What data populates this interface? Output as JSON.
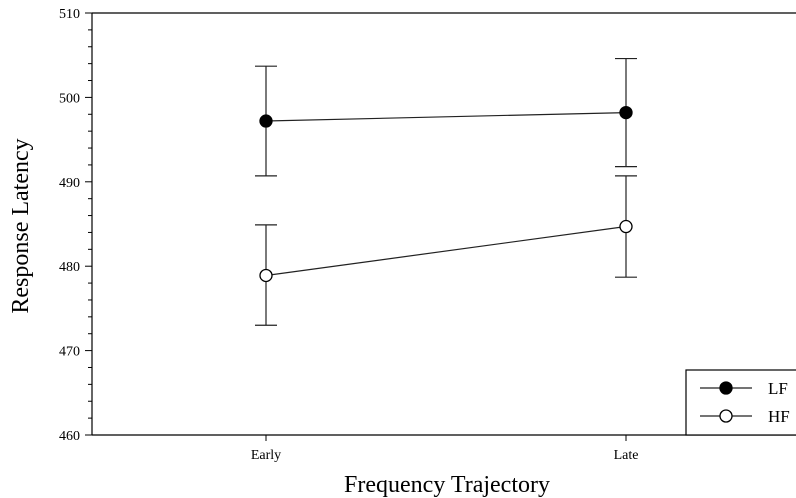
{
  "chart_data": {
    "type": "line",
    "title": "",
    "xlabel": "Frequency Trajectory",
    "ylabel": "Response Latency",
    "categories": [
      "Early",
      "Late"
    ],
    "ylim": [
      460,
      510
    ],
    "yticks": [
      460,
      470,
      480,
      490,
      500,
      510
    ],
    "grid": false,
    "legend_position": "bottom-right",
    "series": [
      {
        "name": "LF",
        "marker": "filled-circle",
        "color": "#000000",
        "values": [
          497.2,
          498.2
        ],
        "error_low": [
          490.7,
          491.8
        ],
        "error_high": [
          503.7,
          504.6
        ]
      },
      {
        "name": "HF",
        "marker": "open-circle",
        "color": "#000000",
        "values": [
          478.9,
          484.7
        ],
        "error_low": [
          473.0,
          478.7
        ],
        "error_high": [
          484.9,
          490.7
        ]
      }
    ]
  }
}
